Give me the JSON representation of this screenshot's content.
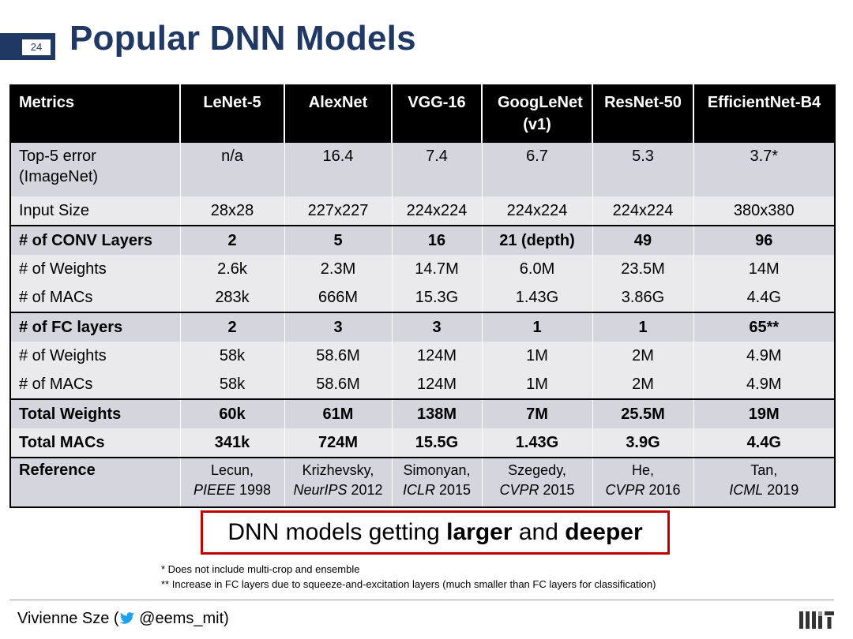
{
  "slide_number": "24",
  "title": "Popular DNN Models",
  "table": {
    "headers": [
      "Metrics",
      "LeNet-5",
      "AlexNet",
      "VGG-16",
      "GoogLeNet (v1)",
      "ResNet-50",
      "EfficientNet-B4"
    ],
    "rows": [
      {
        "label_line1": "Top-5 error",
        "label_line2": "(ImageNet)",
        "values": [
          "n/a",
          "16.4",
          "7.4",
          "6.7",
          "5.3",
          "3.7*"
        ]
      },
      {
        "label": "Input Size",
        "values": [
          "28x28",
          "227x227",
          "224x224",
          "224x224",
          "224x224",
          "380x380"
        ]
      },
      {
        "label": "# of CONV Layers",
        "values": [
          "2",
          "5",
          "16",
          "21 (depth)",
          "49",
          "96"
        ]
      },
      {
        "label": "# of Weights",
        "values": [
          "2.6k",
          "2.3M",
          "14.7M",
          "6.0M",
          "23.5M",
          "14M"
        ]
      },
      {
        "label": "# of MACs",
        "values": [
          "283k",
          "666M",
          "15.3G",
          "1.43G",
          "3.86G",
          "4.4G"
        ]
      },
      {
        "label": "# of FC layers",
        "values": [
          "2",
          "3",
          "3",
          "1",
          "1",
          "65**"
        ]
      },
      {
        "label": "# of Weights",
        "values": [
          "58k",
          "58.6M",
          "124M",
          "1M",
          "2M",
          "4.9M"
        ]
      },
      {
        "label": "# of MACs",
        "values": [
          "58k",
          "58.6M",
          "124M",
          "1M",
          "2M",
          "4.9M"
        ]
      },
      {
        "label": "Total Weights",
        "values": [
          "60k",
          "61M",
          "138M",
          "7M",
          "25.5M",
          "19M"
        ]
      },
      {
        "label": "Total MACs",
        "values": [
          "341k",
          "724M",
          "15.5G",
          "1.43G",
          "3.9G",
          "4.4G"
        ]
      }
    ],
    "reference": {
      "label": "Reference",
      "items": [
        {
          "author": "Lecun,",
          "venue": "PIEEE",
          "year": "1998"
        },
        {
          "author": "Krizhevsky,",
          "venue": "NeurIPS",
          "year": "2012"
        },
        {
          "author": "Simonyan,",
          "venue": "ICLR",
          "year": "2015"
        },
        {
          "author": "Szegedy,",
          "venue": "CVPR",
          "year": "2015"
        },
        {
          "author": "He,",
          "venue": "CVPR",
          "year": "2016"
        },
        {
          "author": "Tan,",
          "venue": "ICML",
          "year": "2019"
        }
      ]
    }
  },
  "callout": {
    "part1": "DNN models getting ",
    "bold1": "larger",
    "part2": " and ",
    "bold2": "deeper"
  },
  "footnotes": [
    "*   Does not include multi-crop and ensemble",
    "** Increase in FC layers due to squeeze-and-excitation layers (much smaller than FC layers for classification)"
  ],
  "footer": {
    "prefix": "Vivienne Sze (",
    "handle": "@eems_mit)"
  },
  "colors": {
    "title": "#1f3864",
    "callout_border": "#c00000",
    "header_bg": "#000000"
  },
  "icons": {
    "twitter": "twitter-bird-icon",
    "logo": "mit-logo"
  }
}
